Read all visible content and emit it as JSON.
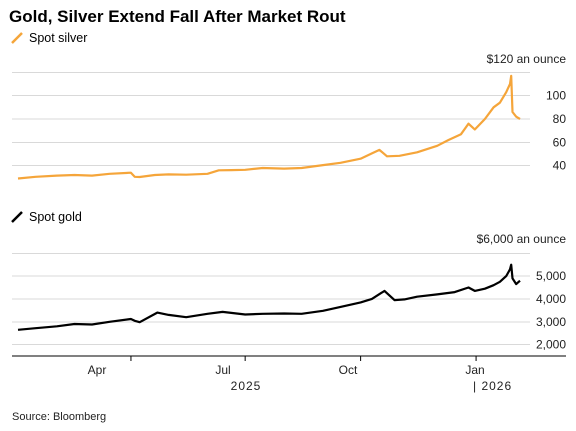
{
  "chart_data": {
    "title": "Gold, Silver Extend Fall After Market Rout",
    "source": "Source: Bloomberg",
    "x_axis": {
      "month_ticks": [
        "Apr",
        "Jul",
        "Oct",
        "Jan"
      ],
      "year_labels": [
        "2025",
        "| 2026"
      ]
    },
    "panels": [
      {
        "type": "line",
        "name": "Spot silver",
        "color": "#f5a53a",
        "y_unit_label": "$120 an ounce",
        "y_ticks": [
          100,
          80,
          60,
          40
        ],
        "ylim": [
          26,
          122
        ],
        "x": [
          "2025-01-01",
          "2025-01-15",
          "2025-02-01",
          "2025-02-15",
          "2025-03-01",
          "2025-03-15",
          "2025-04-01",
          "2025-04-04",
          "2025-04-08",
          "2025-04-20",
          "2025-05-01",
          "2025-05-15",
          "2025-06-01",
          "2025-06-10",
          "2025-06-20",
          "2025-07-01",
          "2025-07-15",
          "2025-08-01",
          "2025-08-15",
          "2025-09-01",
          "2025-09-15",
          "2025-10-01",
          "2025-10-10",
          "2025-10-16",
          "2025-10-22",
          "2025-11-01",
          "2025-11-15",
          "2025-12-01",
          "2025-12-10",
          "2025-12-20",
          "2025-12-26",
          "2025-12-31",
          "2026-01-08",
          "2026-01-15",
          "2026-01-20",
          "2026-01-25",
          "2026-01-28",
          "2026-01-29",
          "2026-01-30",
          "2026-02-02",
          "2026-02-05"
        ],
        "y": [
          29,
          30.5,
          31.5,
          32,
          31.5,
          33,
          34,
          30.5,
          30.3,
          32,
          32.5,
          32.3,
          33,
          36,
          36.2,
          36.5,
          38,
          37.5,
          38,
          40.5,
          42.5,
          46,
          50.5,
          53.5,
          48,
          48.5,
          51.5,
          57,
          62,
          67,
          76,
          71,
          80,
          90,
          94,
          103,
          110,
          117,
          86,
          82,
          80
        ]
      },
      {
        "type": "line",
        "name": "Spot gold",
        "color": "#000000",
        "y_unit_label": "$6,000 an ounce",
        "y_ticks": [
          "5,000",
          "4,000",
          "3,000",
          "2,000"
        ],
        "ylim": [
          1500,
          6100
        ],
        "x": [
          "2025-01-01",
          "2025-01-15",
          "2025-02-01",
          "2025-02-15",
          "2025-03-01",
          "2025-03-15",
          "2025-04-01",
          "2025-04-04",
          "2025-04-08",
          "2025-04-22",
          "2025-05-01",
          "2025-05-15",
          "2025-06-01",
          "2025-06-13",
          "2025-07-01",
          "2025-07-15",
          "2025-08-01",
          "2025-08-15",
          "2025-09-01",
          "2025-09-15",
          "2025-10-01",
          "2025-10-10",
          "2025-10-20",
          "2025-10-28",
          "2025-11-05",
          "2025-11-15",
          "2025-12-01",
          "2025-12-15",
          "2025-12-26",
          "2025-12-31",
          "2026-01-08",
          "2026-01-15",
          "2026-01-20",
          "2026-01-25",
          "2026-01-28",
          "2026-01-29",
          "2026-01-30",
          "2026-02-02",
          "2026-02-05"
        ],
        "y": [
          2650,
          2720,
          2800,
          2900,
          2880,
          3000,
          3120,
          3040,
          2980,
          3400,
          3300,
          3200,
          3350,
          3430,
          3320,
          3350,
          3360,
          3350,
          3480,
          3650,
          3850,
          4000,
          4350,
          3950,
          3980,
          4100,
          4200,
          4300,
          4500,
          4350,
          4450,
          4600,
          4750,
          5000,
          5300,
          5500,
          4900,
          4650,
          4800
        ]
      }
    ]
  }
}
